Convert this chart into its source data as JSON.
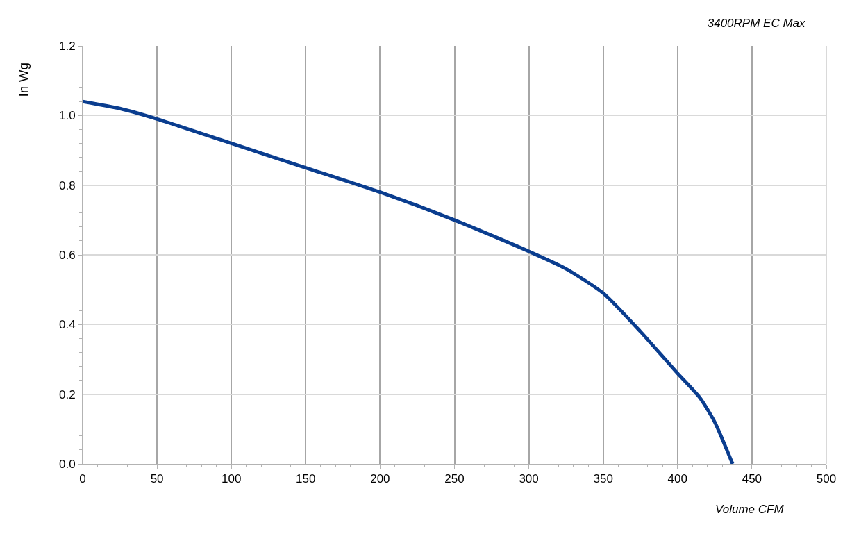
{
  "chart_data": {
    "type": "line",
    "title": "3400RPM EC Max",
    "xlabel": "Volume CFM",
    "ylabel": "In Wg",
    "x": [
      0,
      25,
      50,
      100,
      150,
      200,
      250,
      300,
      325,
      350,
      375,
      400,
      415,
      425,
      437
    ],
    "series": [
      {
        "color": "#0a3d8f",
        "values": [
          1.04,
          1.02,
          0.99,
          0.92,
          0.85,
          0.78,
          0.7,
          0.61,
          0.56,
          0.49,
          0.38,
          0.26,
          0.19,
          0.12,
          0
        ]
      }
    ],
    "xlim": [
      0,
      500
    ],
    "xticks": [
      0,
      50,
      100,
      150,
      200,
      250,
      300,
      350,
      400,
      450,
      500
    ],
    "ylim": [
      0,
      1.2
    ],
    "yticks": [
      {
        "value": 0,
        "label": "0.0"
      },
      {
        "value": 0.2,
        "label": "0.2"
      },
      {
        "value": 0.4,
        "label": "0.4"
      },
      {
        "value": 0.6,
        "label": "0.6"
      },
      {
        "value": 0.8,
        "label": "0.8"
      },
      {
        "value": 1,
        "label": "1.0"
      },
      {
        "value": 1.2,
        "label": "1.2"
      }
    ],
    "grid": true,
    "marker": "none",
    "line_style": "solid"
  }
}
